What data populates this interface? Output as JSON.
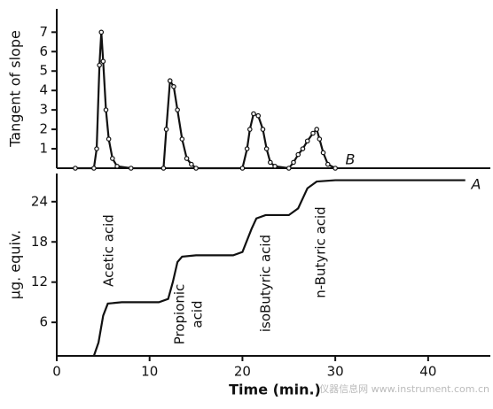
{
  "chart_data": [
    {
      "type": "line",
      "ylabel": "Tangent of slope",
      "x": [
        2,
        4,
        4.3,
        4.6,
        4.8,
        5,
        5.3,
        5.6,
        6,
        6.5,
        8,
        11.5,
        11.8,
        12.2,
        12.6,
        13,
        13.5,
        14,
        14.5,
        15,
        20,
        20.5,
        20.8,
        21.2,
        21.7,
        22.2,
        22.6,
        23,
        23.5,
        25,
        25.5,
        26,
        26.5,
        27,
        27.6,
        28,
        28.3,
        28.7,
        29.2,
        30
      ],
      "values": [
        0,
        0,
        1,
        5.3,
        7,
        5.5,
        3,
        1.5,
        0.5,
        0.1,
        0,
        0,
        2,
        4.5,
        4.2,
        3,
        1.5,
        0.5,
        0.2,
        0,
        0,
        1,
        2,
        2.8,
        2.7,
        2,
        1,
        0.3,
        0.1,
        0,
        0.3,
        0.7,
        1,
        1.4,
        1.8,
        2,
        1.5,
        0.8,
        0.2,
        0
      ],
      "xlim": [
        0,
        46.7
      ],
      "ylim": [
        0,
        8.2
      ],
      "yticks": [
        1,
        2,
        3,
        4,
        5,
        6,
        7
      ],
      "curve_label": "B"
    },
    {
      "type": "line",
      "ylabel": "μg. equiv.",
      "xlabel": "Time (min.)",
      "x": [
        4,
        4.5,
        5,
        5.5,
        7,
        11,
        12,
        12.5,
        13,
        13.5,
        15,
        19,
        20,
        21,
        21.5,
        22.5,
        25,
        26,
        27,
        28,
        30,
        44
      ],
      "values": [
        1,
        3,
        7,
        8.8,
        9,
        9,
        9.5,
        12,
        15,
        15.8,
        16,
        16,
        16.5,
        20,
        21.5,
        22,
        22,
        23,
        26,
        27,
        27.2,
        27.2
      ],
      "xlim": [
        0,
        46.7
      ],
      "xticks": [
        0,
        10,
        20,
        30,
        40
      ],
      "ylim": [
        1,
        28.2
      ],
      "yticks": [
        6,
        12,
        18,
        24
      ],
      "curve_label": "A",
      "annotations": [
        [
          "Acetic acid"
        ],
        [
          "Propionic",
          "acid"
        ],
        [
          "isoButyric acid"
        ],
        [
          "n-Butyric acid"
        ]
      ],
      "watermark": "仪器信息网 www.instrument.com.cn"
    }
  ]
}
